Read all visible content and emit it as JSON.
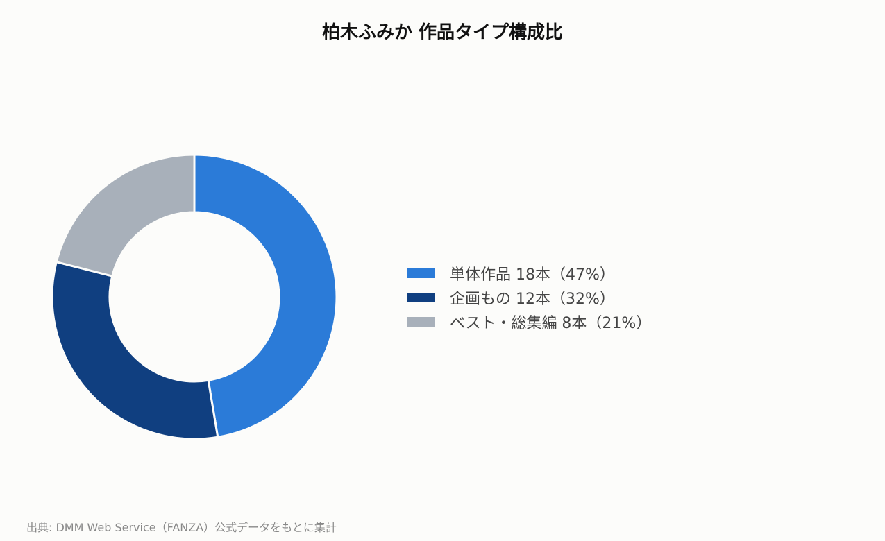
{
  "chart_data": {
    "type": "pie",
    "title": "柏木ふみか 作品タイプ構成比",
    "donut": true,
    "legend_position": "right",
    "slices": [
      {
        "label": "単体作品",
        "value": 18,
        "percent": 47,
        "legend_text": "単体作品 18本（47%）",
        "color": "#2b7bd8"
      },
      {
        "label": "企画もの",
        "value": 12,
        "percent": 32,
        "legend_text": "企画もの 12本（32%）",
        "color": "#103f80"
      },
      {
        "label": "ベスト・総集編",
        "value": 8,
        "percent": 21,
        "legend_text": "ベスト・総集編 8本（21%）",
        "color": "#a8b0ba"
      }
    ]
  },
  "source": "出典: DMM Web Service（FANZA）公式データをもとに集計"
}
